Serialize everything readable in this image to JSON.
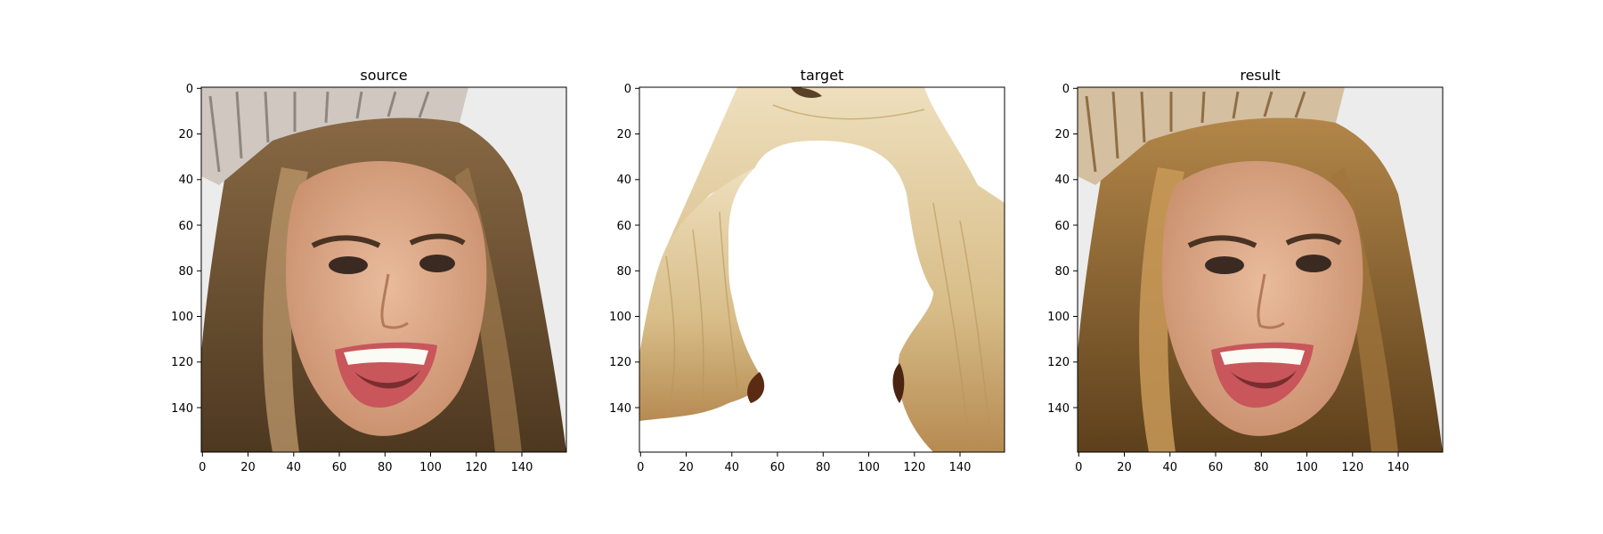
{
  "figure": {
    "panels": [
      {
        "id": "source",
        "title": "source",
        "x_ticks": [
          "0",
          "20",
          "40",
          "60",
          "80",
          "100",
          "120",
          "140"
        ],
        "y_ticks": [
          "0",
          "20",
          "40",
          "60",
          "80",
          "100",
          "120",
          "140"
        ],
        "image_description": "portrait of a smiling woman with long brown hair wearing a tiara"
      },
      {
        "id": "target",
        "title": "target",
        "x_ticks": [
          "0",
          "20",
          "40",
          "60",
          "80",
          "100",
          "120",
          "140"
        ],
        "y_ticks": [
          "0",
          "20",
          "40",
          "60",
          "80",
          "100",
          "120",
          "140"
        ],
        "image_description": "segmented long blonde hair on a white background"
      },
      {
        "id": "result",
        "title": "result",
        "x_ticks": [
          "0",
          "20",
          "40",
          "60",
          "80",
          "100",
          "120",
          "140"
        ],
        "y_ticks": [
          "0",
          "20",
          "40",
          "60",
          "80",
          "100",
          "120",
          "140"
        ],
        "image_description": "the source portrait with hair recolored to a lighter golden brown"
      }
    ]
  },
  "image_extent": [
    0,
    160
  ],
  "colors": {
    "background": "#ffffff",
    "hair_dark": "#5b4328",
    "hair_mid": "#8a6a45",
    "hair_light": "#b89468",
    "skin": "#e2b08f",
    "skin_shadow": "#c98f6c",
    "blonde_light": "#ecdcb7",
    "blonde_mid": "#d8bd88",
    "blonde_dark": "#a57b44",
    "result_hair_dark": "#6b4b22",
    "result_hair_mid": "#a2763c",
    "result_hair_light": "#c99a58",
    "lips": "#c8565a",
    "teeth": "#fbfbf5",
    "tiara": "#cfc7c0",
    "backdrop": "#ececec"
  }
}
